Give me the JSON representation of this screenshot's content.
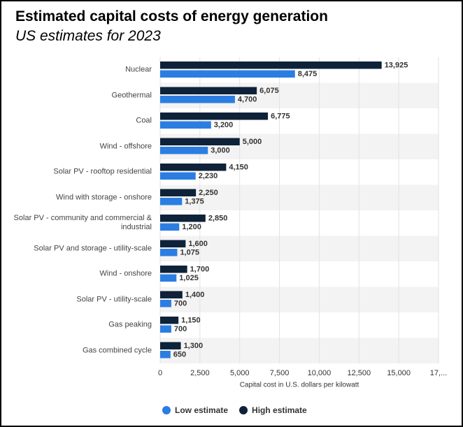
{
  "chart_data": {
    "type": "bar",
    "orientation": "horizontal",
    "title": "Estimated capital costs of energy generation",
    "subtitle": "US estimates for 2023",
    "x_label": "Capital cost in U.S. dollars per kilowatt",
    "categories": [
      "Nuclear",
      "Geothermal",
      "Coal",
      "Wind - offshore",
      "Solar PV - rooftop residential",
      "Wind with storage - onshore",
      "Solar PV - community and commercial & industrial",
      "Solar PV and storage - utility-scale",
      "Wind - onshore",
      "Solar PV - utility-scale",
      "Gas peaking",
      "Gas combined cycle"
    ],
    "series": [
      {
        "name": "High estimate",
        "color": "#0e2239",
        "values": [
          13925,
          6075,
          6775,
          5000,
          4150,
          2250,
          2850,
          1600,
          1700,
          1400,
          1150,
          1300
        ],
        "value_labels": [
          "13,925",
          "6,075",
          "6,775",
          "5,000",
          "4,150",
          "2,250",
          "2,850",
          "1,600",
          "1,700",
          "1,400",
          "1,150",
          "1,300"
        ]
      },
      {
        "name": "Low estimate",
        "color": "#2b7de1",
        "values": [
          8475,
          4700,
          3200,
          3000,
          2230,
          1375,
          1200,
          1075,
          1025,
          700,
          700,
          650
        ],
        "value_labels": [
          "8,475",
          "4,700",
          "3,200",
          "3,000",
          "2,230",
          "1,375",
          "1,200",
          "1,075",
          "1,025",
          "700",
          "700",
          "650"
        ]
      }
    ],
    "legend_order": [
      "Low estimate",
      "High estimate"
    ],
    "xlim": [
      0,
      17500
    ],
    "xticks": [
      0,
      {
        "value": 2500,
        "label": "2,500"
      },
      {
        "value": 5000,
        "label": "5,000"
      },
      {
        "value": 7500,
        "label": "7,500"
      },
      {
        "value": 10000,
        "label": "10,000"
      },
      {
        "value": 12500,
        "label": "12,500"
      },
      {
        "value": 15000,
        "label": "15,000"
      },
      {
        "value": 17500,
        "label": "17,..."
      }
    ],
    "grid": true,
    "legend_position": "bottom"
  }
}
